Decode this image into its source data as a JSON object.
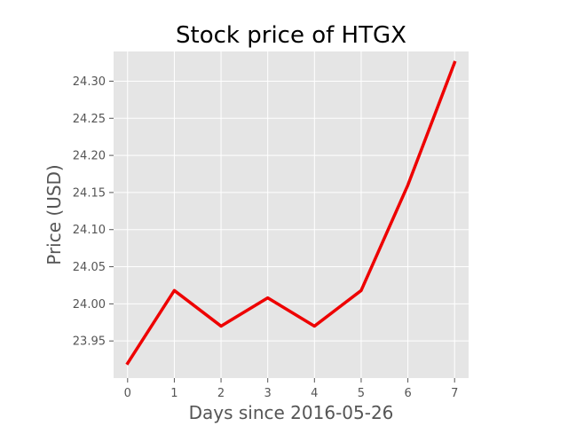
{
  "chart_data": {
    "type": "line",
    "title": "Stock price of HTGX",
    "xlabel": "Days since 2016-05-26",
    "ylabel": "Price (USD)",
    "x": [
      0,
      1,
      2,
      3,
      4,
      5,
      6,
      7
    ],
    "series": [
      {
        "values": [
          23.92,
          24.018,
          23.97,
          24.008,
          23.97,
          24.018,
          24.16,
          24.325
        ]
      }
    ],
    "xlim": [
      -0.3,
      7.3
    ],
    "ylim": [
      23.9,
      24.34
    ],
    "xticks": [
      0,
      1,
      2,
      3,
      4,
      5,
      6,
      7
    ],
    "xtick_labels": [
      "0",
      "1",
      "2",
      "3",
      "4",
      "5",
      "6",
      "7"
    ],
    "yticks": [
      23.95,
      24.0,
      24.05,
      24.1,
      24.15,
      24.2,
      24.25,
      24.3
    ],
    "ytick_labels": [
      "23.95",
      "24.00",
      "24.05",
      "24.10",
      "24.15",
      "24.20",
      "24.25",
      "24.30"
    ],
    "grid": true,
    "style": "ggplot",
    "colors": {
      "line": "#ee0000",
      "background": "#e5e5e5",
      "grid": "#ffffff"
    }
  }
}
